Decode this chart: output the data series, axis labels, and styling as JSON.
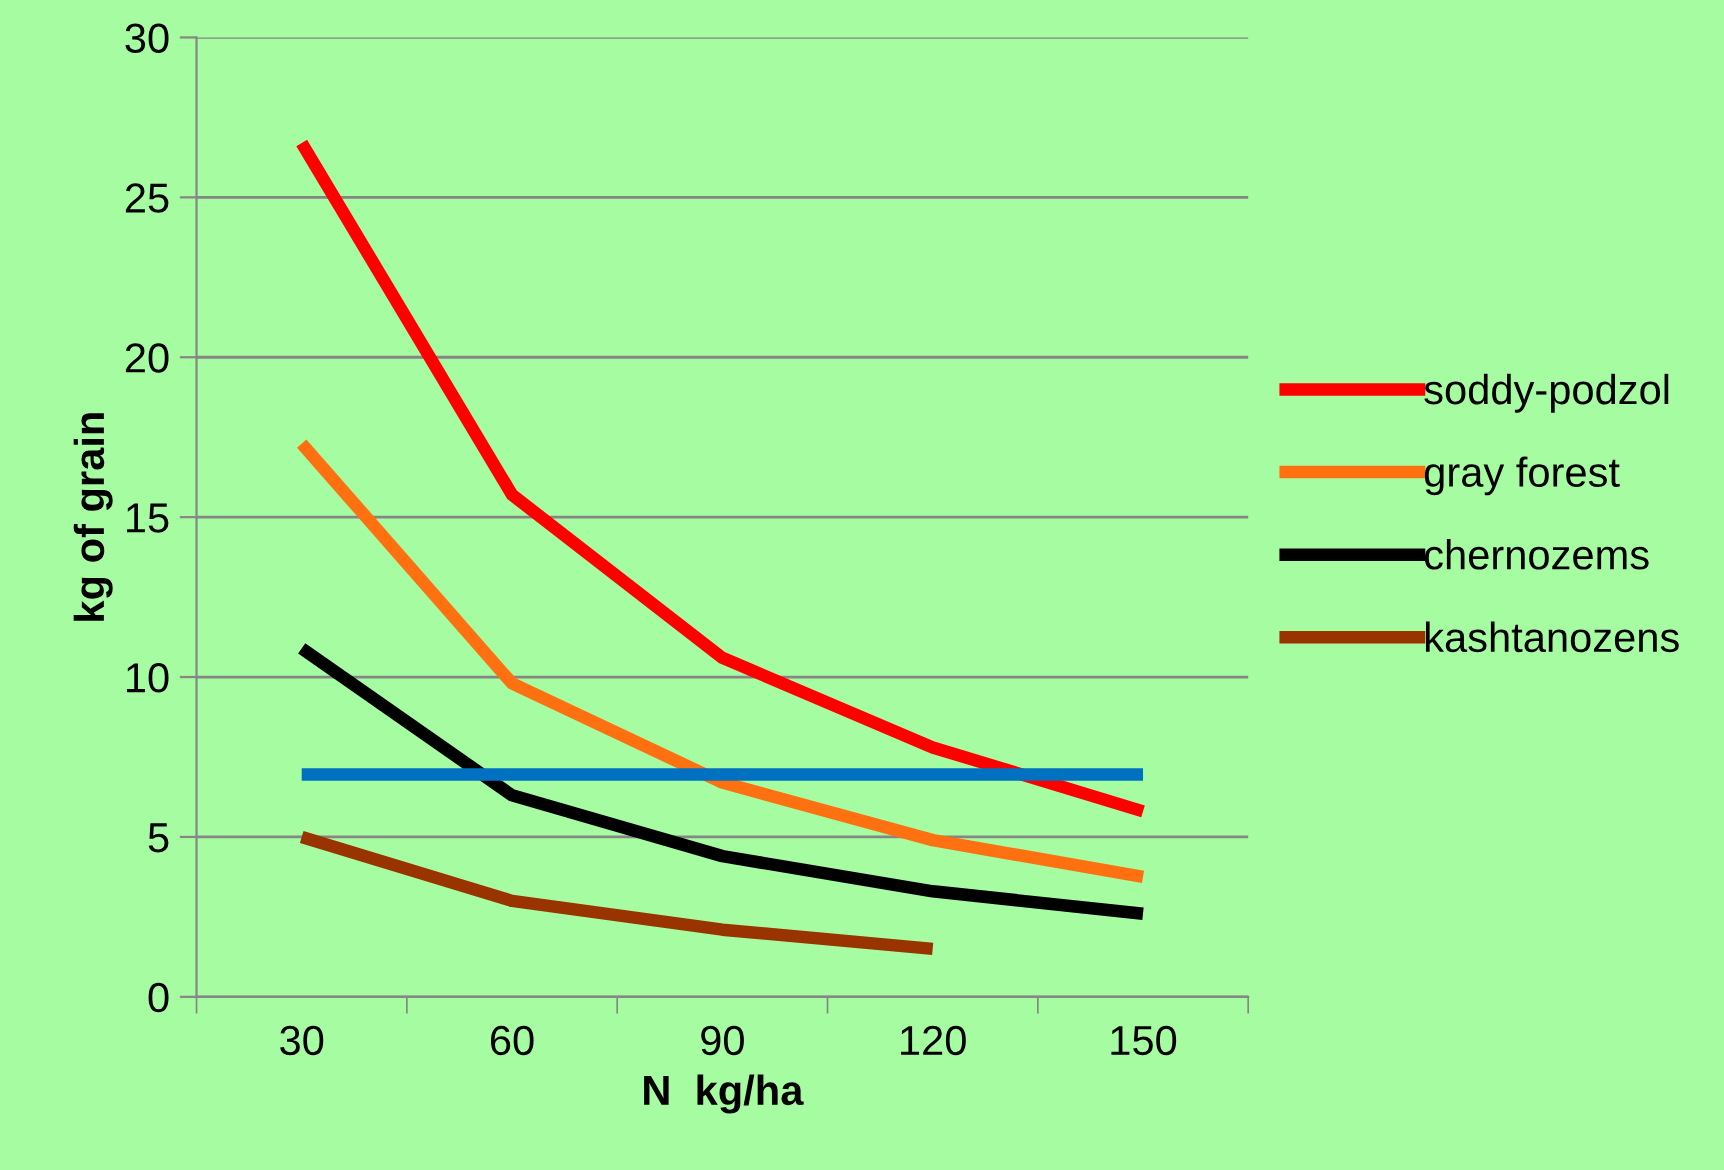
{
  "chart_data": {
    "type": "line",
    "xlabel": "N  kg/ha",
    "ylabel": "kg of grain",
    "categories": [
      "30",
      "60",
      "90",
      "120",
      "150"
    ],
    "series": [
      {
        "name": "soddy-podzol",
        "color": "#ff0000",
        "values": [
          26.7,
          15.7,
          10.6,
          7.8,
          5.8
        ]
      },
      {
        "name": "gray forest",
        "color": "#ff7010",
        "values": [
          17.3,
          9.8,
          6.7,
          4.9,
          3.75
        ]
      },
      {
        "name": "chernozems",
        "color": "#000000",
        "values": [
          10.9,
          6.3,
          4.4,
          3.3,
          2.6
        ]
      },
      {
        "name": "kashtanozens",
        "color": "#993300",
        "values": [
          5.0,
          3.0,
          2.1,
          1.5,
          null
        ]
      },
      {
        "color": "#0070c0",
        "values": [
          6.95,
          6.95,
          6.95,
          6.95,
          6.95
        ]
      }
    ],
    "ylim": [
      0,
      30
    ],
    "yticks": [
      0,
      5,
      10,
      15,
      20,
      25,
      30
    ],
    "grid": "y",
    "legend": "right",
    "marker": "none",
    "line_style": "solid"
  }
}
